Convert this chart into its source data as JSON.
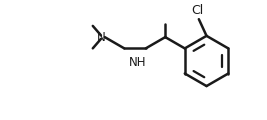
{
  "bg_color": "#ffffff",
  "line_color": "#1a1a1a",
  "line_width": 1.8,
  "font_size": 8.5,
  "font_color": "#1a1a1a",
  "cl_label": "Cl",
  "nh_label": "NH",
  "n_label": "N"
}
